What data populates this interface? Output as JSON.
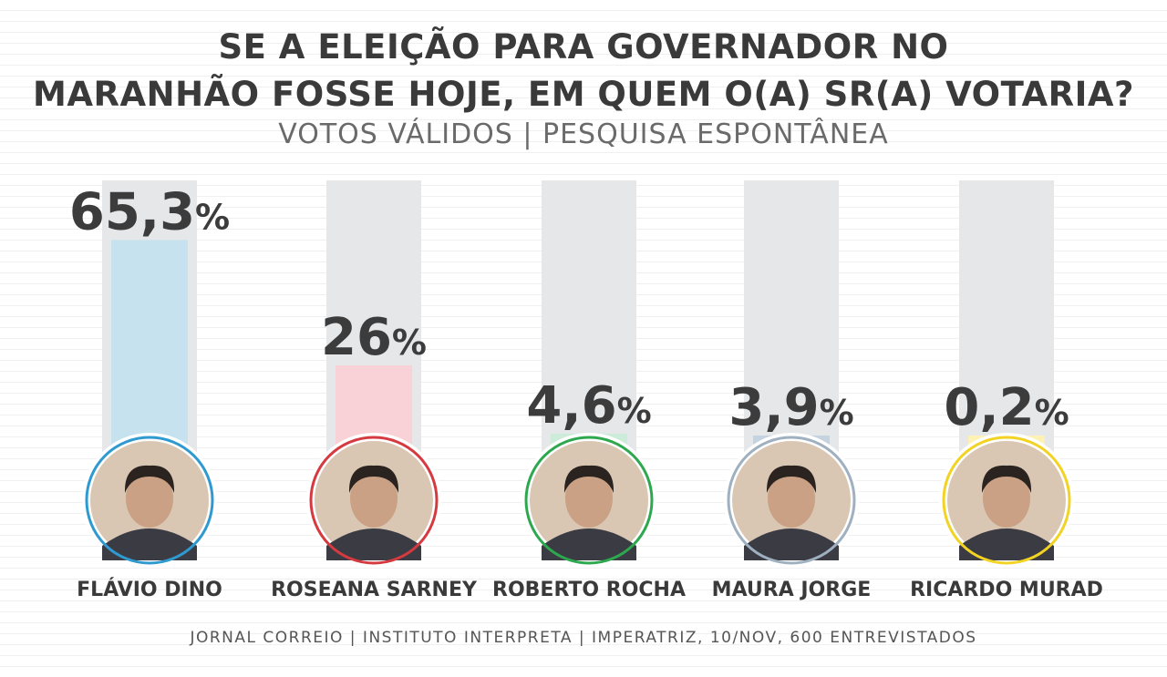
{
  "header": {
    "title_line1": "SE A ELEIÇÃO PARA GOVERNADOR NO",
    "title_line2": "MARANHÃO FOSSE HOJE, EM QUEM O(A) SR(A) VOTARIA?",
    "subtitle": "VOTOS VÁLIDOS | PESQUISA ESPONTÂNEA"
  },
  "footer": {
    "source": "JORNAL CORREIO | INSTITUTO INTERPRETA | IMPERATRIZ, 10/NOV, 600 ENTREVISTADOS"
  },
  "colors": {
    "track": "#e6e7e9",
    "label_text": "#3a3a3a",
    "value_text": "#3c3c3c"
  },
  "chart_data": {
    "type": "bar",
    "title": "SE A ELEIÇÃO PARA GOVERNADOR NO MARANHÃO FOSSE HOJE, EM QUEM O(A) SR(A) VOTARIA?",
    "subtitle": "VOTOS VÁLIDOS | PESQUISA ESPONTÂNEA",
    "categories": [
      "FLÁVIO DINO",
      "ROSEANA SARNEY",
      "ROBERTO ROCHA",
      "MAURA JORGE",
      "RICARDO MURAD"
    ],
    "values": [
      65.3,
      26,
      4.6,
      3.9,
      0.2
    ],
    "value_labels": [
      "65,3",
      "26",
      "4,6",
      "3,9",
      "0,2"
    ],
    "unit": "%",
    "bar_colors": [
      "#c6e2ef",
      "#f8d2d6",
      "#cdebd9",
      "#c5d3e0",
      "#fdf1b5"
    ],
    "ring_colors": [
      "#2f9ad0",
      "#d63a41",
      "#2ea84f",
      "#9fb0c0",
      "#f2d324"
    ],
    "ylim": [
      0,
      100
    ],
    "xlabel": "",
    "ylabel": "",
    "grid": false,
    "legend": "none"
  }
}
